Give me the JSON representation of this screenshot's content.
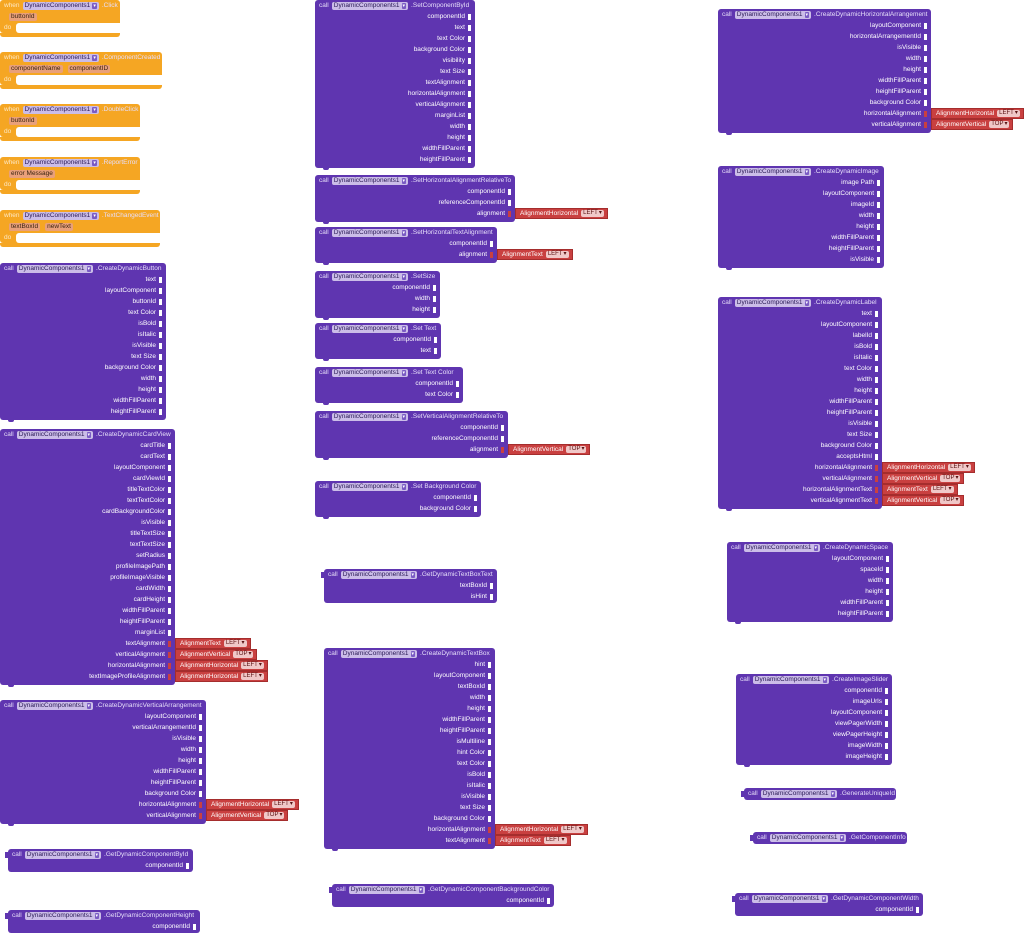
{
  "component": "DynamicComponents1",
  "keywords": {
    "when": "when",
    "do": "do",
    "call": "call"
  },
  "dropdown_glyph": "▾",
  "colors": {
    "event": "#f5a623",
    "method": "#5f35b0",
    "enum": "#c94040",
    "canvas": "#ffffff"
  },
  "events": [
    {
      "method": ".Click",
      "params": [
        "buttonId"
      ]
    },
    {
      "method": ".ComponentCreated",
      "params": [
        "componentName",
        "componentID"
      ]
    },
    {
      "method": ".DoubleClick",
      "params": [
        "buttonId"
      ]
    },
    {
      "method": ".ReportError",
      "params": [
        "error Message"
      ]
    },
    {
      "method": ".TextChangedEvent",
      "params": [
        "textBoxId",
        "newText"
      ]
    }
  ],
  "calls": [
    {
      "method": ".CreateDynamicButton",
      "args": [
        "text",
        "layoutComponent",
        "buttonId",
        "text Color",
        "isBold",
        "isItalic",
        "isVisible",
        "text Size",
        "background Color",
        "width",
        "height",
        "widthFillParent",
        "heightFillParent"
      ]
    },
    {
      "method": ".CreateDynamicCardView",
      "args": [
        "cardTitle",
        "cardText",
        "layoutComponent",
        "cardViewId",
        "titleTextColor",
        "textTextColor",
        "cardBackgroundColor",
        "isVisible",
        "titleTextSize",
        "textTextSize",
        "setRadius",
        "profileImagePath",
        "profileImageVisible",
        "cardWidth",
        "cardHeight",
        "widthFillParent",
        "heightFillParent",
        "marginList",
        "textAlignment",
        "verticalAlignment",
        "horizontalAlignment",
        "textImageProfileAlignment"
      ],
      "enums": {
        "18": {
          "type": "AlignmentText",
          "value": "LEFT"
        },
        "19": {
          "type": "AlignmentVertical",
          "value": "TOP"
        },
        "20": {
          "type": "AlignmentHorizontal",
          "value": "LEFT"
        },
        "21": {
          "type": "AlignmentHorizontal",
          "value": "LEFT"
        }
      }
    },
    {
      "method": ".CreateDynamicVerticalArrangement",
      "args": [
        "layoutComponent",
        "verticalArrangementId",
        "isVisible",
        "width",
        "height",
        "widthFillParent",
        "heightFillParent",
        "background Color",
        "horizontalAlignment",
        "verticalAlignment"
      ],
      "enums": {
        "8": {
          "type": "AlignmentHorizontal",
          "value": "LEFT"
        },
        "9": {
          "type": "AlignmentVertical",
          "value": "TOP"
        }
      }
    },
    {
      "method": ".GetDynamicComponentById",
      "args": [
        "componentId"
      ]
    },
    {
      "method": ".GetDynamicComponentHeight",
      "args": [
        "componentId"
      ]
    },
    {
      "method": ".SetComponentById",
      "args": [
        "componentId",
        "text",
        "text Color",
        "background Color",
        "visibility",
        "text Size",
        "textAlignment",
        "horizontalAlignment",
        "verticalAlignment",
        "marginList",
        "width",
        "height",
        "widthFillParent",
        "heightFillParent"
      ]
    },
    {
      "method": ".SetHorizontalAlignmentRelativeTo",
      "args": [
        "componentId",
        "referenceComponentId",
        "alignment"
      ],
      "enums": {
        "2": {
          "type": "AlignmentHorizontal",
          "value": "LEFT"
        }
      }
    },
    {
      "method": ".SetHorizontalTextAlignment",
      "args": [
        "componentId",
        "alignment"
      ],
      "enums": {
        "1": {
          "type": "AlignmentText",
          "value": "LEFT"
        }
      }
    },
    {
      "method": ".SetSize",
      "args": [
        "componentId",
        "width",
        "height"
      ]
    },
    {
      "method": ".Set Text",
      "args": [
        "componentId",
        "text"
      ]
    },
    {
      "method": ".Set Text Color",
      "args": [
        "componentId",
        "text Color"
      ]
    },
    {
      "method": ".SetVerticalAlignmentRelativeTo",
      "args": [
        "componentId",
        "referenceComponentId",
        "alignment"
      ],
      "enums": {
        "2": {
          "type": "AlignmentVertical",
          "value": "TOP"
        }
      }
    },
    {
      "method": ".Set Background Color",
      "args": [
        "componentId",
        "background Color"
      ]
    },
    {
      "method": ".GetDynamicTextBoxText",
      "args": [
        "textBoxId",
        "isHint"
      ]
    },
    {
      "method": ".CreateDynamicTextBox",
      "args": [
        "hint",
        "layoutComponent",
        "textBoxId",
        "width",
        "height",
        "widthFillParent",
        "heightFillParent",
        "isMultiline",
        "hint Color",
        "text Color",
        "isBold",
        "isItalic",
        "isVisible",
        "text Size",
        "background Color",
        "horizontalAlignment",
        "textAlignment"
      ],
      "enums": {
        "15": {
          "type": "AlignmentHorizontal",
          "value": "LEFT"
        },
        "16": {
          "type": "AlignmentText",
          "value": "LEFT"
        }
      }
    },
    {
      "method": ".GetDynamicComponentBackgroundColor",
      "args": [
        "componentId"
      ]
    },
    {
      "method": ".CreateDynamicHorizontalArrangement",
      "args": [
        "layoutComponent",
        "horizontalArrangementId",
        "isVisible",
        "width",
        "height",
        "widthFillParent",
        "heightFillParent",
        "background Color",
        "horizontalAlignment",
        "verticalAlignment"
      ],
      "enums": {
        "8": {
          "type": "AlignmentHorizontal",
          "value": "LEFT"
        },
        "9": {
          "type": "AlignmentVertical",
          "value": "TOP"
        }
      }
    },
    {
      "method": ".CreateDynamicImage",
      "args": [
        "image Path",
        "layoutComponent",
        "imageId",
        "width",
        "height",
        "widthFillParent",
        "heightFillParent",
        "isVisible"
      ]
    },
    {
      "method": ".CreateDynamicLabel",
      "args": [
        "text",
        "layoutComponent",
        "labelId",
        "isBold",
        "isItalic",
        "text Color",
        "width",
        "height",
        "widthFillParent",
        "heightFillParent",
        "isVisible",
        "text Size",
        "background Color",
        "acceptsHtml",
        "horizontalAlignment",
        "verticalAlignment",
        "horizontalAlignmentText",
        "verticalAlignmentText"
      ],
      "enums": {
        "14": {
          "type": "AlignmentHorizontal",
          "value": "LEFT"
        },
        "15": {
          "type": "AlignmentVertical",
          "value": "TOP"
        },
        "16": {
          "type": "AlignmentText",
          "value": "LEFT"
        },
        "17": {
          "type": "AlignmentVertical",
          "value": "TOP"
        }
      }
    },
    {
      "method": ".CreateDynamicSpace",
      "args": [
        "layoutComponent",
        "spaceId",
        "width",
        "height",
        "widthFillParent",
        "heightFillParent"
      ]
    },
    {
      "method": ".CreateImageSlider",
      "args": [
        "componentId",
        "imageUrls",
        "layoutComponent",
        "viewPagerWidth",
        "viewPagerHeight",
        "imageWidth",
        "imageHeight"
      ]
    },
    {
      "method": ".GenerateUniqueId",
      "args": []
    },
    {
      "method": ".GetComponentInfo",
      "args": []
    },
    {
      "method": ".GetDynamicComponentWidth",
      "args": [
        "componentId"
      ]
    }
  ]
}
